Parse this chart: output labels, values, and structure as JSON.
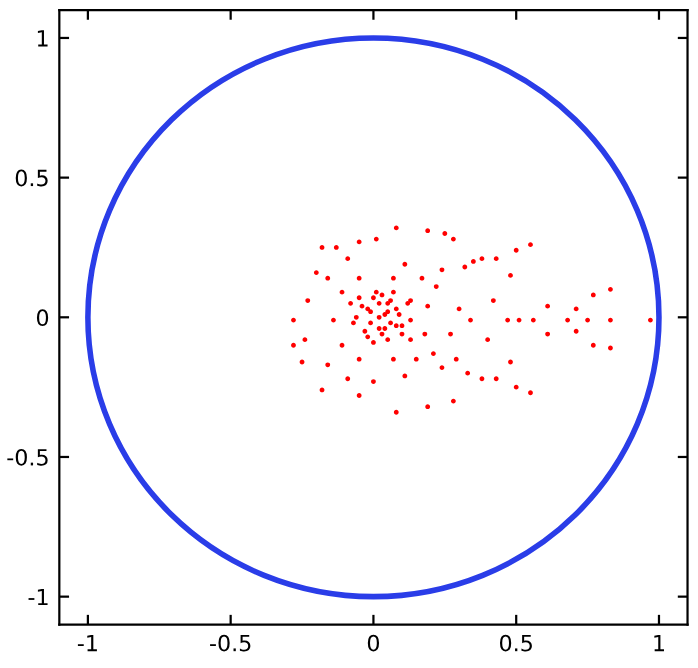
{
  "chart_data": {
    "type": "scatter",
    "marker": "circle",
    "xlim": [
      -1.1,
      1.1
    ],
    "ylim": [
      -1.1,
      1.1
    ],
    "xticks": [
      -1,
      -0.5,
      0,
      0.5,
      1
    ],
    "yticks": [
      -1,
      -0.5,
      0,
      0.5,
      1
    ],
    "grid": false,
    "legend": false,
    "series": [
      {
        "color": "#ff0000",
        "x": [
          0.08,
          0.19,
          0.25,
          0.28,
          0.55,
          0.5,
          -0.18,
          -0.13,
          -0.05,
          0.01,
          -0.28,
          -0.28,
          -0.25,
          -0.18,
          -0.05,
          0.08,
          0.19,
          0.28,
          0.55,
          0.5,
          0.83,
          0.83,
          0.83,
          0.77,
          0.77,
          0.97,
          0.71,
          0.71,
          0.75,
          0.68,
          0.61,
          0.61,
          0.56,
          0.51,
          0.47,
          0.43,
          0.43,
          0.38,
          0.35,
          0.32,
          0.38,
          0.33,
          0.29,
          0.48,
          0.48,
          0.42,
          0.4,
          0.34,
          0.3,
          0.27,
          0.24,
          0.24,
          0.22,
          0.21,
          0.19,
          0.18,
          -0.2,
          -0.23,
          -0.24,
          -0.16,
          -0.09,
          0,
          0.11,
          0.15,
          0.17,
          0.11,
          -0.09,
          -0.16,
          -0.14,
          -0.11,
          -0.11,
          -0.05,
          0.07,
          -0.05,
          0.07,
          0.13,
          0.13,
          0.13,
          0.02,
          0.05,
          -0.01,
          0.08,
          -0.04,
          0.1,
          -0.06,
          0.03,
          0,
          0.06,
          -0.02,
          0.04,
          0.09,
          -0.07,
          0.01,
          0.12,
          -0.08,
          0.05,
          -0.03,
          0.02,
          0.06,
          -0.01,
          0.03,
          0.07,
          -0.05,
          0.1,
          0.0,
          0.04,
          -0.02,
          0.08,
          0.02,
          0.05
        ],
        "values": [
          0.32,
          0.31,
          0.3,
          0.28,
          0.26,
          0.24,
          0.25,
          0.25,
          0.27,
          0.28,
          -0.01,
          -0.1,
          -0.16,
          -0.26,
          -0.28,
          -0.34,
          -0.32,
          -0.3,
          -0.27,
          -0.25,
          0.1,
          -0.01,
          -0.11,
          0.08,
          -0.1,
          -0.01,
          0.03,
          -0.05,
          -0.01,
          -0.01,
          0.04,
          -0.06,
          -0.01,
          -0.01,
          -0.01,
          0.21,
          -0.22,
          0.21,
          0.2,
          0.18,
          -0.22,
          -0.2,
          -0.15,
          -0.16,
          0.15,
          0.06,
          -0.08,
          -0.01,
          0.03,
          -0.06,
          0.17,
          -0.18,
          0.11,
          -0.13,
          0.04,
          -0.06,
          0.16,
          0.06,
          -0.08,
          -0.17,
          -0.22,
          -0.23,
          -0.21,
          -0.15,
          0.14,
          0.19,
          0.21,
          0.14,
          -0.01,
          0.09,
          -0.1,
          0.14,
          0.14,
          -0.15,
          -0.15,
          -0.01,
          0.06,
          -0.08,
          0,
          0.02,
          -0.02,
          0.03,
          0.04,
          -0.03,
          0,
          -0.06,
          0.07,
          0.06,
          -0.07,
          -0.04,
          0.01,
          -0.02,
          0.09,
          0.05,
          0.05,
          -0.08,
          -0.05,
          0.05,
          -0.02,
          0.02,
          0.08,
          0.09,
          0.07,
          -0.06,
          -0.09,
          0.01,
          0.03,
          -0.03,
          -0.04,
          0.05
        ]
      }
    ]
  }
}
